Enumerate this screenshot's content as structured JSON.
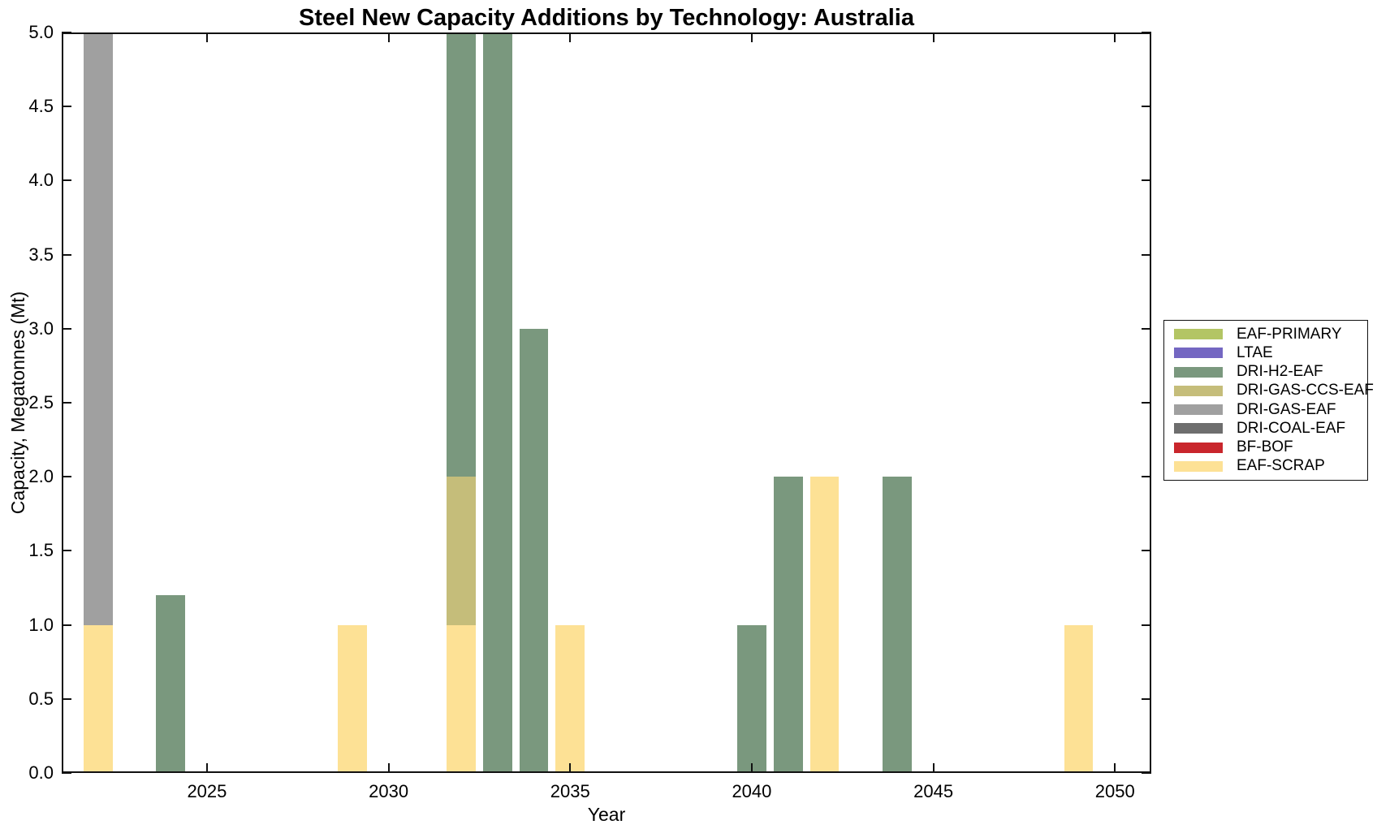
{
  "chart_data": {
    "type": "bar",
    "stacked": true,
    "title": "Steel New Capacity Additions by Technology: Australia",
    "xlabel": "Year",
    "ylabel": "Capacity, Megatonnes (Mt)",
    "xlim": [
      2021,
      2051
    ],
    "ylim": [
      0,
      5
    ],
    "xticks": [
      2025,
      2030,
      2035,
      2040,
      2045,
      2050
    ],
    "xtick_labels": [
      "2025",
      "2030",
      "2035",
      "2040",
      "2045",
      "2050"
    ],
    "yticks": [
      0,
      0.5,
      1,
      1.5,
      2,
      2.5,
      3,
      3.5,
      4,
      4.5,
      5
    ],
    "ytick_labels": [
      "0.0",
      "0.5",
      "1.0",
      "1.5",
      "2.0",
      "2.5",
      "3.0",
      "3.5",
      "4.0",
      "4.5",
      "5.0"
    ],
    "bar_width_years": 0.8,
    "grid": false,
    "legend_position": "outside-right",
    "technologies": [
      {
        "label": "EAF-PRIMARY",
        "color": "#b3c564"
      },
      {
        "label": "LTAE",
        "color": "#7467c2"
      },
      {
        "label": "DRI-H2-EAF",
        "color": "#7a987e"
      },
      {
        "label": "DRI-GAS-CCS-EAF",
        "color": "#c5bd7a"
      },
      {
        "label": "DRI-GAS-EAF",
        "color": "#a0a0a0"
      },
      {
        "label": "DRI-COAL-EAF",
        "color": "#6e6e6e"
      },
      {
        "label": "BF-BOF",
        "color": "#c9262c"
      },
      {
        "label": "EAF-SCRAP",
        "color": "#fde195"
      }
    ],
    "bars": [
      {
        "year": 2022,
        "segments": [
          {
            "tech": "EAF-SCRAP",
            "value": 1.0
          },
          {
            "tech": "DRI-GAS-EAF",
            "value": 4.0,
            "clipped_at_top": true
          }
        ]
      },
      {
        "year": 2024,
        "segments": [
          {
            "tech": "DRI-H2-EAF",
            "value": 1.2
          }
        ]
      },
      {
        "year": 2029,
        "segments": [
          {
            "tech": "EAF-SCRAP",
            "value": 1.0
          }
        ]
      },
      {
        "year": 2032,
        "segments": [
          {
            "tech": "EAF-SCRAP",
            "value": 1.0
          },
          {
            "tech": "DRI-GAS-CCS-EAF",
            "value": 1.0
          },
          {
            "tech": "DRI-H2-EAF",
            "value": 3.0,
            "clipped_at_top": true
          }
        ]
      },
      {
        "year": 2033,
        "segments": [
          {
            "tech": "DRI-H2-EAF",
            "value": 5.0,
            "clipped_at_top": true
          }
        ]
      },
      {
        "year": 2034,
        "segments": [
          {
            "tech": "DRI-H2-EAF",
            "value": 3.0
          }
        ]
      },
      {
        "year": 2035,
        "segments": [
          {
            "tech": "EAF-SCRAP",
            "value": 1.0
          }
        ]
      },
      {
        "year": 2040,
        "segments": [
          {
            "tech": "DRI-H2-EAF",
            "value": 1.0
          }
        ]
      },
      {
        "year": 2041,
        "segments": [
          {
            "tech": "DRI-H2-EAF",
            "value": 2.0
          }
        ]
      },
      {
        "year": 2042,
        "segments": [
          {
            "tech": "EAF-SCRAP",
            "value": 2.0
          }
        ]
      },
      {
        "year": 2044,
        "segments": [
          {
            "tech": "DRI-H2-EAF",
            "value": 2.0
          }
        ]
      },
      {
        "year": 2049,
        "segments": [
          {
            "tech": "EAF-SCRAP",
            "value": 1.0
          }
        ]
      }
    ]
  }
}
